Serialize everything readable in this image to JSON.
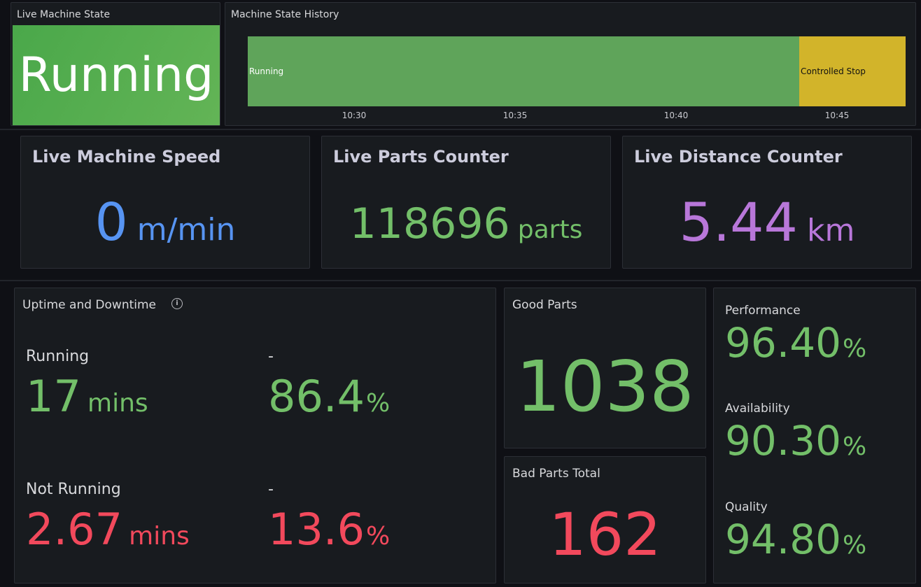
{
  "live_state": {
    "title": "Live Machine State",
    "value": "Running",
    "color": "#52ab4d"
  },
  "history": {
    "title": "Machine State History",
    "segments": [
      {
        "label": "Running",
        "color": "#5fa45a"
      },
      {
        "label": "Controlled Stop",
        "color": "#d2b42a"
      }
    ],
    "ticks": [
      "10:30",
      "10:35",
      "10:40",
      "10:45"
    ]
  },
  "speed": {
    "title": "Live Machine Speed",
    "value": "0",
    "unit": "m/min",
    "color": "#5794f2"
  },
  "parts": {
    "title": "Live Parts Counter",
    "value": "118696",
    "unit": "parts",
    "color": "#73bf69"
  },
  "distance": {
    "title": "Live Distance Counter",
    "value": "5.44",
    "unit": "km",
    "color": "#b877d9"
  },
  "uptime": {
    "title": "Uptime and Downtime",
    "running": {
      "label": "Running",
      "value": "17",
      "unit": "mins",
      "pct_label": "-",
      "pct": "86.4",
      "pct_unit": "%"
    },
    "not_running": {
      "label": "Not Running",
      "value": "2.67",
      "unit": "mins",
      "pct_label": "-",
      "pct": "13.6",
      "pct_unit": "%"
    }
  },
  "good_parts": {
    "title": "Good Parts",
    "value": "1038"
  },
  "bad_parts": {
    "title": "Bad Parts Total",
    "value": "162"
  },
  "oee": [
    {
      "label": "Performance",
      "value": "96.40",
      "unit": "%"
    },
    {
      "label": "Availability",
      "value": "90.30",
      "unit": "%"
    },
    {
      "label": "Quality",
      "value": "94.80",
      "unit": "%"
    }
  ]
}
